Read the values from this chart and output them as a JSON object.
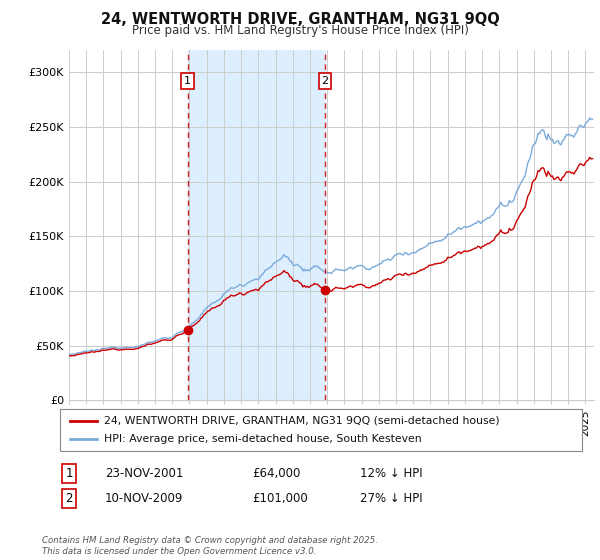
{
  "title": "24, WENTWORTH DRIVE, GRANTHAM, NG31 9QQ",
  "subtitle": "Price paid vs. HM Land Registry's House Price Index (HPI)",
  "ylim": [
    0,
    320000
  ],
  "yticks": [
    0,
    50000,
    100000,
    150000,
    200000,
    250000,
    300000
  ],
  "ytick_labels": [
    "£0",
    "£50K",
    "£100K",
    "£150K",
    "£200K",
    "£250K",
    "£300K"
  ],
  "xlim_start": 1995.0,
  "xlim_end": 2025.5,
  "sale1_x": 2001.9,
  "sale1_y": 64000,
  "sale2_x": 2009.87,
  "sale2_y": 101000,
  "red_line_color": "#cc0000",
  "blue_line_color": "#7aabdb",
  "shaded_color": "#ddeeff",
  "vline_color": "#cc0000",
  "grid_color": "#cccccc",
  "background_color": "#ffffff",
  "legend_label_red": "24, WENTWORTH DRIVE, GRANTHAM, NG31 9QQ (semi-detached house)",
  "legend_label_blue": "HPI: Average price, semi-detached house, South Kesteven",
  "sale1_date": "23-NOV-2001",
  "sale1_price": "£64,000",
  "sale1_hpi": "12% ↓ HPI",
  "sale2_date": "10-NOV-2009",
  "sale2_price": "£101,000",
  "sale2_hpi": "27% ↓ HPI",
  "footer": "Contains HM Land Registry data © Crown copyright and database right 2025.\nThis data is licensed under the Open Government Licence v3.0."
}
